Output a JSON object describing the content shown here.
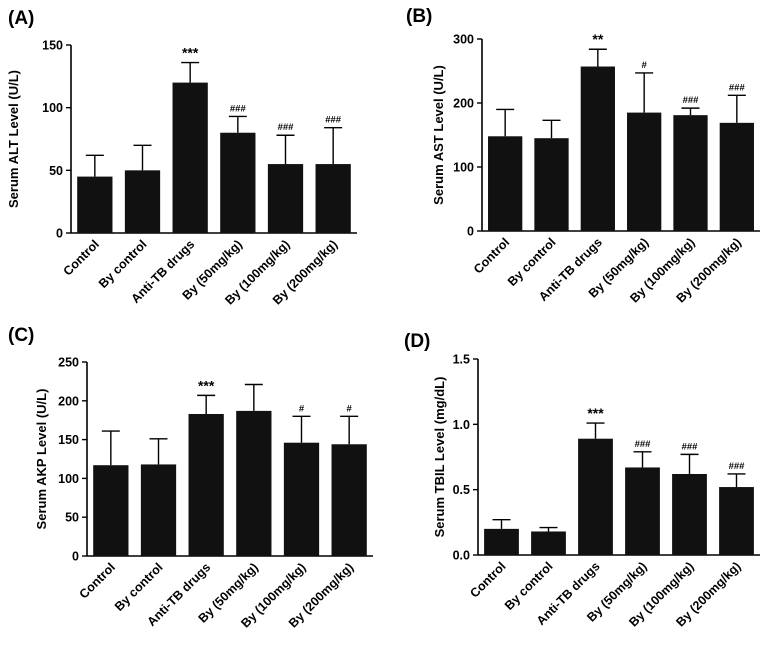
{
  "figure": {
    "background": "#ffffff",
    "bar_color": "#111111"
  },
  "chart_data": [
    {
      "panel": "(A)",
      "type": "bar",
      "ylabel": "Serum ALT Level (U/L)",
      "xlabel": "",
      "ylim": [
        0,
        150
      ],
      "yticks": [
        0,
        50,
        100,
        150
      ],
      "categories": [
        "Control",
        "By control",
        "Anti-TB drugs",
        "By (50mg/kg)",
        "By (100mg/kg)",
        "By (200mg/kg)"
      ],
      "values": [
        45,
        50,
        120,
        80,
        55,
        55
      ],
      "errors": [
        17,
        20,
        16,
        13,
        23,
        29
      ],
      "annotations": [
        "",
        "",
        "***",
        "###",
        "###",
        "###"
      ]
    },
    {
      "panel": "(B)",
      "type": "bar",
      "ylabel": "Serum AST Level (U/L)",
      "xlabel": "",
      "ylim": [
        0,
        300
      ],
      "yticks": [
        0,
        100,
        200,
        300
      ],
      "categories": [
        "Control",
        "By control",
        "Anti-TB drugs",
        "By (50mg/kg)",
        "By (100mg/kg)",
        "By (200mg/kg)"
      ],
      "values": [
        148,
        145,
        257,
        185,
        181,
        169
      ],
      "errors": [
        42,
        28,
        27,
        62,
        11,
        43
      ],
      "annotations": [
        "",
        "",
        "**",
        "#",
        "###",
        "###"
      ]
    },
    {
      "panel": "(C)",
      "type": "bar",
      "ylabel": "Serum AKP Level (U/L)",
      "xlabel": "",
      "ylim": [
        0,
        250
      ],
      "yticks": [
        0,
        50,
        100,
        150,
        200,
        250
      ],
      "categories": [
        "Control",
        "By control",
        "Anti-TB drugs",
        "By (50mg/kg)",
        "By (100mg/kg)",
        "By (200mg/kg)"
      ],
      "values": [
        117,
        118,
        183,
        187,
        146,
        144
      ],
      "errors": [
        44,
        33,
        24,
        34,
        34,
        36
      ],
      "annotations": [
        "",
        "",
        "***",
        "",
        "#",
        "#"
      ]
    },
    {
      "panel": "(D)",
      "type": "bar",
      "ylabel": "Serum TBIL Level (mg/dL)",
      "xlabel": "",
      "ylim": [
        0,
        1.5
      ],
      "yticks": [
        "0.0",
        "0.5",
        "1.0",
        "1.5"
      ],
      "categories": [
        "Control",
        "By control",
        "Anti-TB drugs",
        "By (50mg/kg)",
        "By (100mg/kg)",
        "By (200mg/kg)"
      ],
      "values": [
        0.2,
        0.18,
        0.89,
        0.67,
        0.62,
        0.52
      ],
      "errors": [
        0.07,
        0.03,
        0.12,
        0.12,
        0.15,
        0.1
      ],
      "annotations": [
        "",
        "",
        "***",
        "###",
        "###",
        "###"
      ]
    }
  ]
}
